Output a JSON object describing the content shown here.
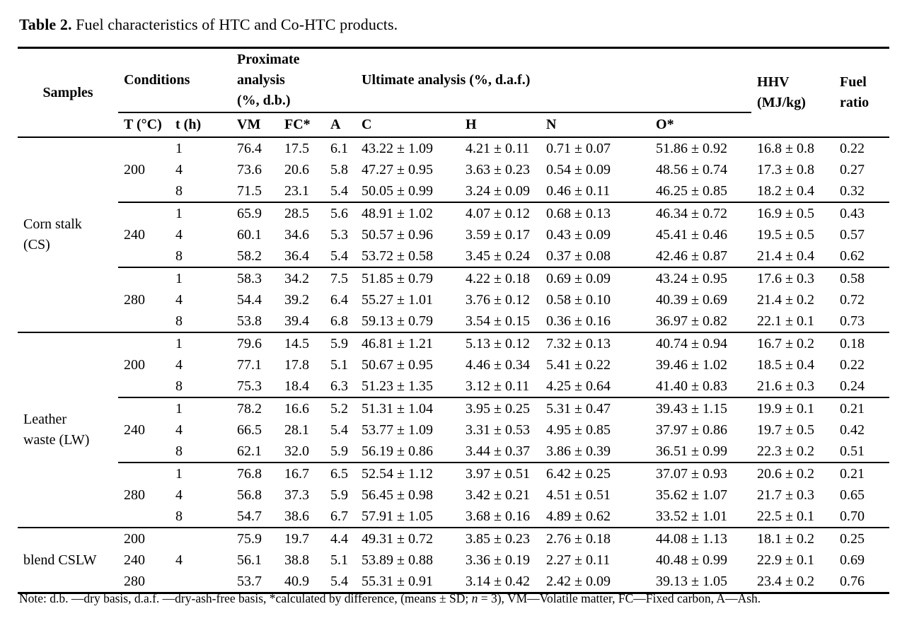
{
  "title": {
    "bold": "Table 2.",
    "rest": " Fuel characteristics of HTC and Co-HTC products."
  },
  "table": {
    "header": {
      "samples": "Samples",
      "conditions": "Conditions",
      "proximate": "Proximate\nanalysis\n(%, d.b.)",
      "ultimate": "Ultimate analysis (%, d.a.f.)",
      "hhv": "HHV\n(MJ/kg)",
      "fuel_ratio": "Fuel\nratio",
      "sub": [
        "T (°C)",
        "t (h)",
        "VM",
        "FC*",
        "A",
        "C",
        "H",
        "N",
        "O*"
      ]
    },
    "rows": [
      {
        "sep": null,
        "cells": [
          {
            "c": "samples",
            "v": "Corn stalk\n(CS)",
            "rs": 9
          },
          {
            "c": "T",
            "v": "200",
            "rs": 3
          },
          {
            "c": "t",
            "v": "1"
          },
          {
            "c": "VM",
            "v": "76.4"
          },
          {
            "c": "FC",
            "v": "17.5"
          },
          {
            "c": "A",
            "v": "6.1"
          },
          {
            "c": "C",
            "v": "43.22 ± 1.09"
          },
          {
            "c": "H",
            "v": "4.21 ± 0.11"
          },
          {
            "c": "N",
            "v": "0.71 ± 0.07"
          },
          {
            "c": "O",
            "v": "51.86 ± 0.92"
          },
          {
            "c": "HHV",
            "v": "16.8 ± 0.8"
          },
          {
            "c": "FR",
            "v": "0.22"
          }
        ]
      },
      {
        "sep": null,
        "cells": [
          {
            "c": "t",
            "v": "4"
          },
          {
            "c": "VM",
            "v": "73.6"
          },
          {
            "c": "FC",
            "v": "20.6"
          },
          {
            "c": "A",
            "v": "5.8"
          },
          {
            "c": "C",
            "v": "47.27 ± 0.95"
          },
          {
            "c": "H",
            "v": "3.63 ± 0.23"
          },
          {
            "c": "N",
            "v": "0.54 ± 0.09"
          },
          {
            "c": "O",
            "v": "48.56 ± 0.74"
          },
          {
            "c": "HHV",
            "v": "17.3 ± 0.8"
          },
          {
            "c": "FR",
            "v": "0.27"
          }
        ]
      },
      {
        "sep": "partial",
        "cells": [
          {
            "c": "t",
            "v": "8"
          },
          {
            "c": "VM",
            "v": "71.5"
          },
          {
            "c": "FC",
            "v": "23.1"
          },
          {
            "c": "A",
            "v": "5.4"
          },
          {
            "c": "C",
            "v": "50.05 ± 0.99"
          },
          {
            "c": "H",
            "v": "3.24 ± 0.09"
          },
          {
            "c": "N",
            "v": "0.46 ± 0.11"
          },
          {
            "c": "O",
            "v": "46.25 ± 0.85"
          },
          {
            "c": "HHV",
            "v": "18.2 ± 0.4"
          },
          {
            "c": "FR",
            "v": "0.32"
          }
        ]
      },
      {
        "sep": null,
        "cells": [
          {
            "c": "T",
            "v": "240",
            "rs": 3
          },
          {
            "c": "t",
            "v": "1"
          },
          {
            "c": "VM",
            "v": "65.9"
          },
          {
            "c": "FC",
            "v": "28.5"
          },
          {
            "c": "A",
            "v": "5.6"
          },
          {
            "c": "C",
            "v": "48.91 ± 1.02"
          },
          {
            "c": "H",
            "v": "4.07 ± 0.12"
          },
          {
            "c": "N",
            "v": "0.68 ± 0.13"
          },
          {
            "c": "O",
            "v": "46.34 ± 0.72"
          },
          {
            "c": "HHV",
            "v": "16.9 ± 0.5"
          },
          {
            "c": "FR",
            "v": "0.43"
          }
        ]
      },
      {
        "sep": null,
        "cells": [
          {
            "c": "t",
            "v": "4"
          },
          {
            "c": "VM",
            "v": "60.1"
          },
          {
            "c": "FC",
            "v": "34.6"
          },
          {
            "c": "A",
            "v": "5.3"
          },
          {
            "c": "C",
            "v": "50.57 ± 0.96"
          },
          {
            "c": "H",
            "v": "3.59 ± 0.17"
          },
          {
            "c": "N",
            "v": "0.43 ± 0.09"
          },
          {
            "c": "O",
            "v": "45.41 ± 0.46"
          },
          {
            "c": "HHV",
            "v": "19.5 ± 0.5"
          },
          {
            "c": "FR",
            "v": "0.57"
          }
        ]
      },
      {
        "sep": "partial",
        "cells": [
          {
            "c": "t",
            "v": "8"
          },
          {
            "c": "VM",
            "v": "58.2"
          },
          {
            "c": "FC",
            "v": "36.4"
          },
          {
            "c": "A",
            "v": "5.4"
          },
          {
            "c": "C",
            "v": "53.72 ± 0.58"
          },
          {
            "c": "H",
            "v": "3.45 ± 0.24"
          },
          {
            "c": "N",
            "v": "0.37 ± 0.08"
          },
          {
            "c": "O",
            "v": "42.46 ± 0.87"
          },
          {
            "c": "HHV",
            "v": "21.4 ± 0.4"
          },
          {
            "c": "FR",
            "v": "0.62"
          }
        ]
      },
      {
        "sep": null,
        "cells": [
          {
            "c": "T",
            "v": "280",
            "rs": 3
          },
          {
            "c": "t",
            "v": "1"
          },
          {
            "c": "VM",
            "v": "58.3"
          },
          {
            "c": "FC",
            "v": "34.2"
          },
          {
            "c": "A",
            "v": "7.5"
          },
          {
            "c": "C",
            "v": "51.85 ± 0.79"
          },
          {
            "c": "H",
            "v": "4.22 ± 0.18"
          },
          {
            "c": "N",
            "v": "0.69 ± 0.09"
          },
          {
            "c": "O",
            "v": "43.24 ± 0.95"
          },
          {
            "c": "HHV",
            "v": "17.6 ± 0.3"
          },
          {
            "c": "FR",
            "v": "0.58"
          }
        ]
      },
      {
        "sep": null,
        "cells": [
          {
            "c": "t",
            "v": "4"
          },
          {
            "c": "VM",
            "v": "54.4"
          },
          {
            "c": "FC",
            "v": "39.2"
          },
          {
            "c": "A",
            "v": "6.4"
          },
          {
            "c": "C",
            "v": "55.27 ± 1.01"
          },
          {
            "c": "H",
            "v": "3.76 ± 0.12"
          },
          {
            "c": "N",
            "v": "0.58 ± 0.10"
          },
          {
            "c": "O",
            "v": "40.39 ± 0.69"
          },
          {
            "c": "HHV",
            "v": "21.4 ± 0.2"
          },
          {
            "c": "FR",
            "v": "0.72"
          }
        ]
      },
      {
        "sep": "full",
        "cells": [
          {
            "c": "t",
            "v": "8"
          },
          {
            "c": "VM",
            "v": "53.8"
          },
          {
            "c": "FC",
            "v": "39.4"
          },
          {
            "c": "A",
            "v": "6.8"
          },
          {
            "c": "C",
            "v": "59.13 ± 0.79"
          },
          {
            "c": "H",
            "v": "3.54 ± 0.15"
          },
          {
            "c": "N",
            "v": "0.36 ± 0.16"
          },
          {
            "c": "O",
            "v": "36.97 ± 0.82"
          },
          {
            "c": "HHV",
            "v": "22.1 ± 0.1"
          },
          {
            "c": "FR",
            "v": "0.73"
          }
        ]
      },
      {
        "sep": null,
        "cells": [
          {
            "c": "samples",
            "v": "Leather\nwaste (LW)",
            "rs": 9
          },
          {
            "c": "T",
            "v": "200",
            "rs": 3
          },
          {
            "c": "t",
            "v": "1"
          },
          {
            "c": "VM",
            "v": "79.6"
          },
          {
            "c": "FC",
            "v": "14.5"
          },
          {
            "c": "A",
            "v": "5.9"
          },
          {
            "c": "C",
            "v": "46.81 ± 1.21"
          },
          {
            "c": "H",
            "v": "5.13 ± 0.12"
          },
          {
            "c": "N",
            "v": "7.32 ± 0.13"
          },
          {
            "c": "O",
            "v": "40.74 ± 0.94"
          },
          {
            "c": "HHV",
            "v": "16.7 ± 0.2"
          },
          {
            "c": "FR",
            "v": "0.18"
          }
        ]
      },
      {
        "sep": null,
        "cells": [
          {
            "c": "t",
            "v": "4"
          },
          {
            "c": "VM",
            "v": "77.1"
          },
          {
            "c": "FC",
            "v": "17.8"
          },
          {
            "c": "A",
            "v": "5.1"
          },
          {
            "c": "C",
            "v": "50.67 ± 0.95"
          },
          {
            "c": "H",
            "v": "4.46 ± 0.34"
          },
          {
            "c": "N",
            "v": "5.41 ± 0.22"
          },
          {
            "c": "O",
            "v": "39.46 ± 1.02"
          },
          {
            "c": "HHV",
            "v": "18.5 ± 0.4"
          },
          {
            "c": "FR",
            "v": "0.22"
          }
        ]
      },
      {
        "sep": "partial",
        "cells": [
          {
            "c": "t",
            "v": "8"
          },
          {
            "c": "VM",
            "v": "75.3"
          },
          {
            "c": "FC",
            "v": "18.4"
          },
          {
            "c": "A",
            "v": "6.3"
          },
          {
            "c": "C",
            "v": "51.23 ± 1.35"
          },
          {
            "c": "H",
            "v": "3.12 ± 0.11"
          },
          {
            "c": "N",
            "v": "4.25 ± 0.64"
          },
          {
            "c": "O",
            "v": "41.40 ± 0.83"
          },
          {
            "c": "HHV",
            "v": "21.6 ± 0.3"
          },
          {
            "c": "FR",
            "v": "0.24"
          }
        ]
      },
      {
        "sep": null,
        "cells": [
          {
            "c": "T",
            "v": "240",
            "rs": 3
          },
          {
            "c": "t",
            "v": "1"
          },
          {
            "c": "VM",
            "v": "78.2"
          },
          {
            "c": "FC",
            "v": "16.6"
          },
          {
            "c": "A",
            "v": "5.2"
          },
          {
            "c": "C",
            "v": "51.31 ± 1.04"
          },
          {
            "c": "H",
            "v": "3.95 ± 0.25"
          },
          {
            "c": "N",
            "v": "5.31 ± 0.47"
          },
          {
            "c": "O",
            "v": "39.43 ± 1.15"
          },
          {
            "c": "HHV",
            "v": "19.9 ± 0.1"
          },
          {
            "c": "FR",
            "v": "0.21"
          }
        ]
      },
      {
        "sep": null,
        "cells": [
          {
            "c": "t",
            "v": "4"
          },
          {
            "c": "VM",
            "v": "66.5"
          },
          {
            "c": "FC",
            "v": "28.1"
          },
          {
            "c": "A",
            "v": "5.4"
          },
          {
            "c": "C",
            "v": "53.77 ± 1.09"
          },
          {
            "c": "H",
            "v": "3.31 ± 0.53"
          },
          {
            "c": "N",
            "v": "4.95 ± 0.85"
          },
          {
            "c": "O",
            "v": "37.97 ± 0.86"
          },
          {
            "c": "HHV",
            "v": "19.7 ± 0.5"
          },
          {
            "c": "FR",
            "v": "0.42"
          }
        ]
      },
      {
        "sep": "partial",
        "cells": [
          {
            "c": "t",
            "v": "8"
          },
          {
            "c": "VM",
            "v": "62.1"
          },
          {
            "c": "FC",
            "v": "32.0"
          },
          {
            "c": "A",
            "v": "5.9"
          },
          {
            "c": "C",
            "v": "56.19 ± 0.86"
          },
          {
            "c": "H",
            "v": "3.44 ± 0.37"
          },
          {
            "c": "N",
            "v": "3.86 ± 0.39"
          },
          {
            "c": "O",
            "v": "36.51 ± 0.99"
          },
          {
            "c": "HHV",
            "v": "22.3 ± 0.2"
          },
          {
            "c": "FR",
            "v": "0.51"
          }
        ]
      },
      {
        "sep": null,
        "cells": [
          {
            "c": "T",
            "v": "280",
            "rs": 3
          },
          {
            "c": "t",
            "v": "1"
          },
          {
            "c": "VM",
            "v": "76.8"
          },
          {
            "c": "FC",
            "v": "16.7"
          },
          {
            "c": "A",
            "v": "6.5"
          },
          {
            "c": "C",
            "v": "52.54 ± 1.12"
          },
          {
            "c": "H",
            "v": "3.97 ± 0.51"
          },
          {
            "c": "N",
            "v": "6.42 ± 0.25"
          },
          {
            "c": "O",
            "v": "37.07 ± 0.93"
          },
          {
            "c": "HHV",
            "v": "20.6 ± 0.2"
          },
          {
            "c": "FR",
            "v": "0.21"
          }
        ]
      },
      {
        "sep": null,
        "cells": [
          {
            "c": "t",
            "v": "4"
          },
          {
            "c": "VM",
            "v": "56.8"
          },
          {
            "c": "FC",
            "v": "37.3"
          },
          {
            "c": "A",
            "v": "5.9"
          },
          {
            "c": "C",
            "v": "56.45 ± 0.98"
          },
          {
            "c": "H",
            "v": "3.42 ± 0.21"
          },
          {
            "c": "N",
            "v": "4.51 ± 0.51"
          },
          {
            "c": "O",
            "v": "35.62 ± 1.07"
          },
          {
            "c": "HHV",
            "v": "21.7 ± 0.3"
          },
          {
            "c": "FR",
            "v": "0.65"
          }
        ]
      },
      {
        "sep": "full",
        "cells": [
          {
            "c": "t",
            "v": "8"
          },
          {
            "c": "VM",
            "v": "54.7"
          },
          {
            "c": "FC",
            "v": "38.6"
          },
          {
            "c": "A",
            "v": "6.7"
          },
          {
            "c": "C",
            "v": "57.91 ± 1.05"
          },
          {
            "c": "H",
            "v": "3.68 ± 0.16"
          },
          {
            "c": "N",
            "v": "4.89 ± 0.62"
          },
          {
            "c": "O",
            "v": "33.52 ± 1.01"
          },
          {
            "c": "HHV",
            "v": "22.5 ± 0.1"
          },
          {
            "c": "FR",
            "v": "0.70"
          }
        ]
      },
      {
        "sep": null,
        "cells": [
          {
            "c": "samples",
            "v": "blend CSLW",
            "rs": 3
          },
          {
            "c": "T",
            "v": "200"
          },
          {
            "c": "t",
            "v": "4",
            "rs": 3
          },
          {
            "c": "VM",
            "v": "75.9"
          },
          {
            "c": "FC",
            "v": "19.7"
          },
          {
            "c": "A",
            "v": "4.4"
          },
          {
            "c": "C",
            "v": "49.31 ± 0.72"
          },
          {
            "c": "H",
            "v": "3.85 ± 0.23"
          },
          {
            "c": "N",
            "v": "2.76 ± 0.18"
          },
          {
            "c": "O",
            "v": "44.08 ± 1.13"
          },
          {
            "c": "HHV",
            "v": "18.1 ± 0.2"
          },
          {
            "c": "FR",
            "v": "0.25"
          }
        ]
      },
      {
        "sep": null,
        "cells": [
          {
            "c": "T",
            "v": "240"
          },
          {
            "c": "VM",
            "v": "56.1"
          },
          {
            "c": "FC",
            "v": "38.8"
          },
          {
            "c": "A",
            "v": "5.1"
          },
          {
            "c": "C",
            "v": "53.89 ± 0.88"
          },
          {
            "c": "H",
            "v": "3.36 ± 0.19"
          },
          {
            "c": "N",
            "v": "2.27 ± 0.11"
          },
          {
            "c": "O",
            "v": "40.48 ± 0.99"
          },
          {
            "c": "HHV",
            "v": "22.9 ± 0.1"
          },
          {
            "c": "FR",
            "v": "0.69"
          }
        ]
      },
      {
        "sep": null,
        "cells": [
          {
            "c": "T",
            "v": "280"
          },
          {
            "c": "VM",
            "v": "53.7"
          },
          {
            "c": "FC",
            "v": "40.9"
          },
          {
            "c": "A",
            "v": "5.4"
          },
          {
            "c": "C",
            "v": "55.31 ± 0.91"
          },
          {
            "c": "H",
            "v": "3.14 ± 0.42"
          },
          {
            "c": "N",
            "v": "2.42 ± 0.09"
          },
          {
            "c": "O",
            "v": "39.13 ± 1.05"
          },
          {
            "c": "HHV",
            "v": "23.4 ± 0.2"
          },
          {
            "c": "FR",
            "v": "0.76"
          }
        ]
      }
    ]
  },
  "note": {
    "prefix": "Note: d.b. —dry basis, d.a.f. —dry-ash-free basis, *calculated by difference, (means ± SD; ",
    "italic": "n",
    "suffix": " = 3), VM—Volatile matter, FC—Fixed carbon, A—Ash."
  }
}
